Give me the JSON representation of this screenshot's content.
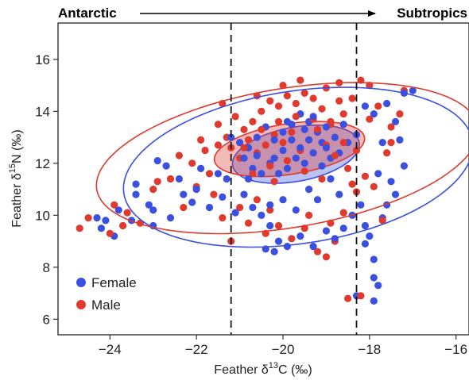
{
  "colors": {
    "female": "#3b4fe0",
    "male": "#e03a2f",
    "frame": "#333333",
    "dashed": "#111111"
  },
  "top_axis": {
    "left_label": "Antarctic",
    "right_label": "Subtropics"
  },
  "chart_data": {
    "type": "scatter",
    "xlabel": {
      "prefix": "Feather δ",
      "sup": "13",
      "suffix": "C (‰)"
    },
    "ylabel": {
      "prefix": "Feather δ",
      "sup": "15",
      "suffix": "N (‰)"
    },
    "xlim": [
      -25.2,
      -15.7
    ],
    "ylim": [
      5.4,
      17.4
    ],
    "x_ticks": [
      -24,
      -22,
      -20,
      -18,
      -16
    ],
    "x_tick_labels": [
      "−24",
      "−22",
      "−20",
      "−18",
      "−16"
    ],
    "y_ticks": [
      6,
      8,
      10,
      12,
      14,
      16
    ],
    "y_tick_labels": [
      "6",
      "8",
      "10",
      "12",
      "14",
      "16"
    ],
    "grid": false,
    "legend_position": "bottom-left",
    "vertical_dashed_lines": [
      -21.2,
      -18.3
    ],
    "series": [
      {
        "name": "Female",
        "color": "#3b4fe0",
        "ellipses": [
          {
            "kind": "core",
            "cx": -19.7,
            "cy": 12.35,
            "a": 1.55,
            "b": 1.0,
            "angle_deg": 25,
            "filled": true
          },
          {
            "kind": "outer",
            "cx": -19.65,
            "cy": 11.85,
            "a": 4.2,
            "b": 2.85,
            "angle_deg": 22,
            "filled": false
          }
        ],
        "points": [
          [
            -24.3,
            9.9
          ],
          [
            -24.1,
            9.8
          ],
          [
            -23.9,
            9.2
          ],
          [
            -24.2,
            9.5
          ],
          [
            -23.8,
            10.2
          ],
          [
            -23.5,
            9.8
          ],
          [
            -23.4,
            11.2
          ],
          [
            -23.4,
            10.8
          ],
          [
            -23.1,
            10.4
          ],
          [
            -23.0,
            9.6
          ],
          [
            -22.6,
            9.9
          ],
          [
            -23.0,
            10.2
          ],
          [
            -22.7,
            11.9
          ],
          [
            -22.4,
            11.4
          ],
          [
            -22.0,
            11.0
          ],
          [
            -21.7,
            10.3
          ],
          [
            -21.5,
            11.6
          ],
          [
            -21.3,
            11.4
          ],
          [
            -21.1,
            10.1
          ],
          [
            -20.9,
            10.8
          ],
          [
            -20.7,
            10.3
          ],
          [
            -20.5,
            10.0
          ],
          [
            -20.3,
            9.6
          ],
          [
            -20.1,
            9.0
          ],
          [
            -19.9,
            8.8
          ],
          [
            -20.4,
            8.7
          ],
          [
            -20.2,
            8.6
          ],
          [
            -19.6,
            9.2
          ],
          [
            -19.3,
            8.8
          ],
          [
            -19.0,
            9.4
          ],
          [
            -18.8,
            9.1
          ],
          [
            -18.6,
            9.5
          ],
          [
            -18.4,
            10.0
          ],
          [
            -18.2,
            10.4
          ],
          [
            -18.1,
            9.6
          ],
          [
            -18.0,
            9.2
          ],
          [
            -17.9,
            7.6
          ],
          [
            -17.8,
            7.3
          ],
          [
            -17.9,
            8.3
          ],
          [
            -18.1,
            8.9
          ],
          [
            -17.9,
            6.7
          ],
          [
            -18.3,
            6.9
          ],
          [
            -17.7,
            9.9
          ],
          [
            -17.6,
            10.4
          ],
          [
            -17.8,
            11.6
          ],
          [
            -17.5,
            11.3
          ],
          [
            -17.4,
            10.8
          ],
          [
            -17.7,
            12.8
          ],
          [
            -17.4,
            13.6
          ],
          [
            -17.3,
            12.9
          ],
          [
            -17.9,
            13.9
          ],
          [
            -17.6,
            14.3
          ],
          [
            -17.2,
            14.7
          ],
          [
            -17.0,
            14.8
          ],
          [
            -18.1,
            14.2
          ],
          [
            -18.3,
            13.1
          ],
          [
            -18.5,
            12.8
          ],
          [
            -18.7,
            12.4
          ],
          [
            -18.9,
            12.2
          ],
          [
            -19.1,
            12.8
          ],
          [
            -19.2,
            13.2
          ],
          [
            -19.4,
            13.6
          ],
          [
            -19.6,
            13.9
          ],
          [
            -19.8,
            13.5
          ],
          [
            -20.0,
            13.2
          ],
          [
            -20.2,
            12.9
          ],
          [
            -20.4,
            13.4
          ],
          [
            -20.6,
            13.0
          ],
          [
            -20.8,
            12.6
          ],
          [
            -21.0,
            12.8
          ],
          [
            -21.2,
            13.0
          ],
          [
            -20.9,
            12.2
          ],
          [
            -20.7,
            11.8
          ],
          [
            -20.5,
            11.6
          ],
          [
            -20.3,
            12.0
          ],
          [
            -20.1,
            11.6
          ],
          [
            -19.9,
            11.8
          ],
          [
            -19.7,
            12.2
          ],
          [
            -19.5,
            12.0
          ],
          [
            -19.3,
            12.4
          ],
          [
            -19.1,
            11.9
          ],
          [
            -18.9,
            11.4
          ],
          [
            -19.0,
            12.6
          ],
          [
            -19.4,
            12.9
          ],
          [
            -19.6,
            12.6
          ],
          [
            -19.8,
            12.9
          ],
          [
            -20.0,
            12.5
          ],
          [
            -20.2,
            12.2
          ],
          [
            -19.9,
            13.6
          ],
          [
            -19.5,
            13.3
          ],
          [
            -19.3,
            13.8
          ],
          [
            -19.0,
            13.4
          ],
          [
            -18.8,
            13.0
          ],
          [
            -18.6,
            13.5
          ],
          [
            -20.6,
            12.3
          ],
          [
            -20.8,
            11.4
          ],
          [
            -21.4,
            10.7
          ],
          [
            -22.1,
            10.5
          ],
          [
            -21.9,
            11.8
          ],
          [
            -19.4,
            11.0
          ],
          [
            -19.2,
            10.6
          ],
          [
            -18.7,
            10.8
          ],
          [
            -20.0,
            10.6
          ],
          [
            -20.3,
            10.4
          ],
          [
            -19.7,
            10.2
          ],
          [
            -22.9,
            12.1
          ],
          [
            -22.3,
            10.8
          ],
          [
            -17.2,
            11.9
          ]
        ]
      },
      {
        "name": "Male",
        "color": "#e03a2f",
        "ellipses": [
          {
            "kind": "core",
            "cx": -19.85,
            "cy": 12.55,
            "a": 1.8,
            "b": 0.95,
            "angle_deg": 18,
            "filled": true
          },
          {
            "kind": "outer",
            "cx": -19.9,
            "cy": 12.2,
            "a": 4.6,
            "b": 2.6,
            "angle_deg": 20,
            "filled": false
          }
        ],
        "points": [
          [
            -24.7,
            9.5
          ],
          [
            -24.5,
            9.9
          ],
          [
            -24.0,
            9.3
          ],
          [
            -23.9,
            10.4
          ],
          [
            -23.6,
            10.1
          ],
          [
            -23.3,
            9.7
          ],
          [
            -23.0,
            11.0
          ],
          [
            -22.9,
            11.3
          ],
          [
            -22.6,
            11.4
          ],
          [
            -22.4,
            12.3
          ],
          [
            -22.1,
            12.0
          ],
          [
            -22.0,
            11.1
          ],
          [
            -21.8,
            12.5
          ],
          [
            -21.5,
            12.7
          ],
          [
            -21.6,
            10.8
          ],
          [
            -21.4,
            9.9
          ],
          [
            -21.2,
            9.0
          ],
          [
            -21.0,
            10.3
          ],
          [
            -20.8,
            9.7
          ],
          [
            -20.6,
            10.6
          ],
          [
            -20.4,
            9.3
          ],
          [
            -20.1,
            9.6
          ],
          [
            -19.8,
            9.1
          ],
          [
            -19.5,
            9.5
          ],
          [
            -19.2,
            8.6
          ],
          [
            -19.0,
            8.4
          ],
          [
            -18.8,
            9.0
          ],
          [
            -18.6,
            10.1
          ],
          [
            -18.4,
            11.2
          ],
          [
            -18.5,
            11.8
          ],
          [
            -18.3,
            12.5
          ],
          [
            -18.1,
            11.5
          ],
          [
            -17.9,
            11.1
          ],
          [
            -17.6,
            12.4
          ],
          [
            -17.5,
            13.4
          ],
          [
            -17.3,
            13.9
          ],
          [
            -17.2,
            14.8
          ],
          [
            -17.8,
            14.2
          ],
          [
            -18.0,
            15.0
          ],
          [
            -18.2,
            15.2
          ],
          [
            -18.4,
            14.5
          ],
          [
            -18.6,
            13.9
          ],
          [
            -18.7,
            14.4
          ],
          [
            -18.9,
            13.6
          ],
          [
            -19.1,
            14.1
          ],
          [
            -19.3,
            14.5
          ],
          [
            -19.5,
            14.7
          ],
          [
            -19.7,
            14.3
          ],
          [
            -19.9,
            14.6
          ],
          [
            -20.1,
            14.2
          ],
          [
            -20.3,
            14.4
          ],
          [
            -20.5,
            14.0
          ],
          [
            -20.7,
            13.6
          ],
          [
            -20.9,
            13.3
          ],
          [
            -21.1,
            13.8
          ],
          [
            -21.3,
            13.0
          ],
          [
            -21.5,
            13.5
          ],
          [
            -21.2,
            12.6
          ],
          [
            -21.0,
            12.2
          ],
          [
            -20.8,
            12.9
          ],
          [
            -20.6,
            12.4
          ],
          [
            -20.4,
            12.7
          ],
          [
            -20.2,
            13.1
          ],
          [
            -20.0,
            12.8
          ],
          [
            -19.8,
            13.2
          ],
          [
            -19.6,
            12.5
          ],
          [
            -19.4,
            12.9
          ],
          [
            -19.2,
            13.3
          ],
          [
            -19.0,
            12.7
          ],
          [
            -18.8,
            12.3
          ],
          [
            -18.6,
            12.8
          ],
          [
            -18.9,
            13.5
          ],
          [
            -19.3,
            13.7
          ],
          [
            -19.7,
            13.8
          ],
          [
            -20.1,
            13.6
          ],
          [
            -20.5,
            13.3
          ],
          [
            -20.9,
            12.6
          ],
          [
            -20.3,
            11.9
          ],
          [
            -19.9,
            12.1
          ],
          [
            -19.5,
            11.7
          ],
          [
            -19.1,
            11.4
          ],
          [
            -20.7,
            11.6
          ],
          [
            -20.2,
            11.3
          ],
          [
            -18.5,
            6.8
          ],
          [
            -18.2,
            6.9
          ],
          [
            -17.7,
            9.8
          ],
          [
            -18.3,
            10.9
          ],
          [
            -21.7,
            11.6
          ],
          [
            -22.3,
            10.3
          ],
          [
            -23.7,
            9.6
          ],
          [
            -20.0,
            15.0
          ],
          [
            -19.6,
            15.2
          ],
          [
            -19.0,
            14.9
          ],
          [
            -18.7,
            15.1
          ],
          [
            -20.6,
            14.6
          ],
          [
            -21.4,
            14.3
          ],
          [
            -17.5,
            12.8
          ],
          [
            -21.9,
            12.9
          ],
          [
            -18.0,
            13.7
          ],
          [
            -20.3,
            10.2
          ],
          [
            -19.4,
            10.0
          ],
          [
            -18.9,
            9.7
          ]
        ]
      }
    ]
  }
}
